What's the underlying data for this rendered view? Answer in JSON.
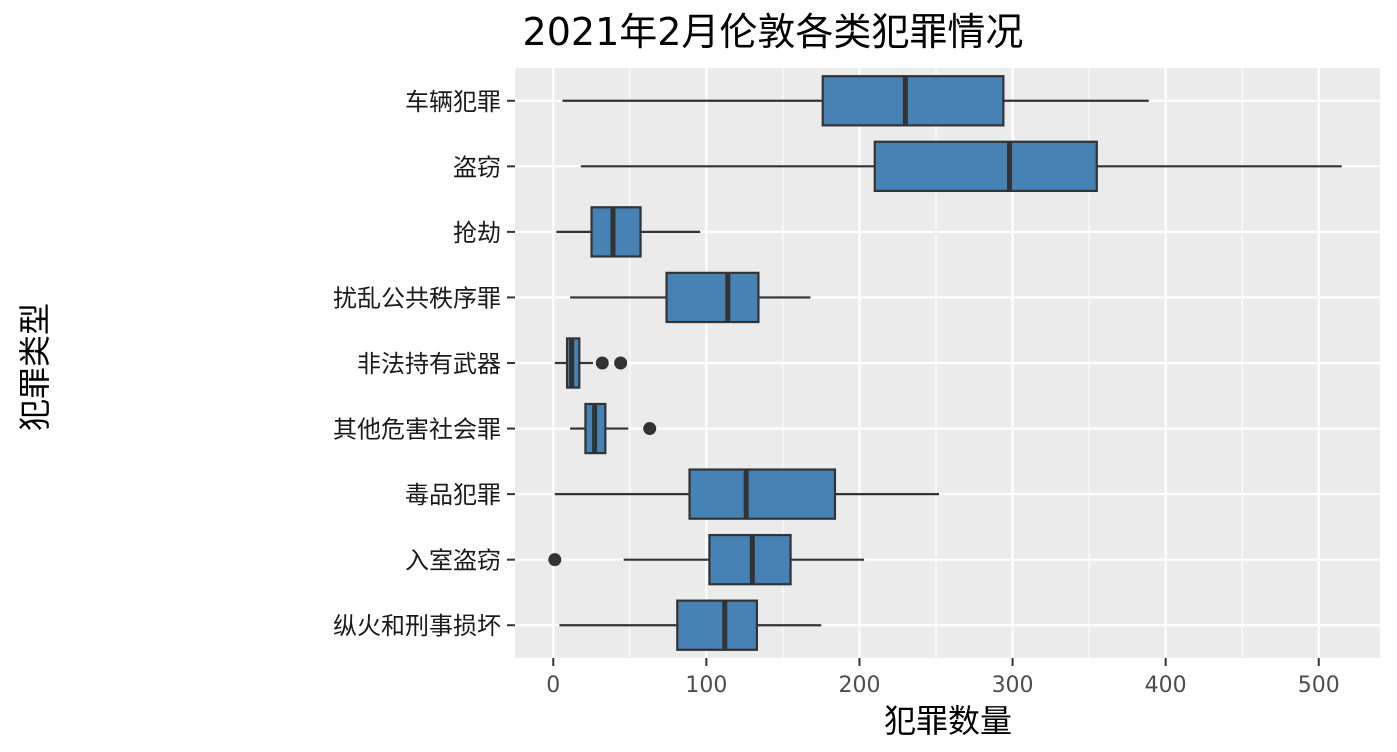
{
  "chart_data": {
    "type": "boxplot",
    "orientation": "horizontal",
    "title": "2021年2月伦敦各类犯罪情况",
    "xlabel": "犯罪数量",
    "ylabel": "犯罪类型",
    "xlim": [
      -25,
      540
    ],
    "x_ticks": [
      "0",
      "100",
      "200",
      "300",
      "400",
      "500"
    ],
    "x_tick_values": [
      0,
      100,
      200,
      300,
      400,
      500
    ],
    "grid": true,
    "colors": {
      "box_fill": "#4682b4",
      "panel_bg": "#ebebeb",
      "grid": "#ffffff",
      "stroke": "#333333"
    },
    "categories": [
      "车辆犯罪",
      "盗窃",
      "抢劫",
      "扰乱公共秩序罪",
      "非法持有武器",
      "其他危害社会罪",
      "毒品犯罪",
      "入室盗窃",
      "纵火和刑事损坏"
    ],
    "boxes": [
      {
        "category": "车辆犯罪",
        "whisker_low": 6,
        "q1": 176,
        "median": 230,
        "q3": 294,
        "whisker_high": 389,
        "outliers": []
      },
      {
        "category": "盗窃",
        "whisker_low": 18,
        "q1": 210,
        "median": 298,
        "q3": 355,
        "whisker_high": 515,
        "outliers": []
      },
      {
        "category": "抢劫",
        "whisker_low": 2,
        "q1": 25,
        "median": 39,
        "q3": 57,
        "whisker_high": 96,
        "outliers": []
      },
      {
        "category": "扰乱公共秩序罪",
        "whisker_low": 11,
        "q1": 74,
        "median": 114,
        "q3": 134,
        "whisker_high": 168,
        "outliers": []
      },
      {
        "category": "非法持有武器",
        "whisker_low": 1,
        "q1": 9,
        "median": 12,
        "q3": 17,
        "whisker_high": 26,
        "outliers": [
          32,
          44
        ]
      },
      {
        "category": "其他危害社会罪",
        "whisker_low": 11,
        "q1": 21,
        "median": 27,
        "q3": 34,
        "whisker_high": 49,
        "outliers": [
          63
        ]
      },
      {
        "category": "毒品犯罪",
        "whisker_low": 1,
        "q1": 89,
        "median": 126,
        "q3": 184,
        "whisker_high": 252,
        "outliers": []
      },
      {
        "category": "入室盗窃",
        "whisker_low": 46,
        "q1": 102,
        "median": 130,
        "q3": 155,
        "whisker_high": 203,
        "outliers": [
          1
        ]
      },
      {
        "category": "纵火和刑事损坏",
        "whisker_low": 4,
        "q1": 81,
        "median": 112,
        "q3": 133,
        "whisker_high": 175,
        "outliers": []
      }
    ]
  }
}
